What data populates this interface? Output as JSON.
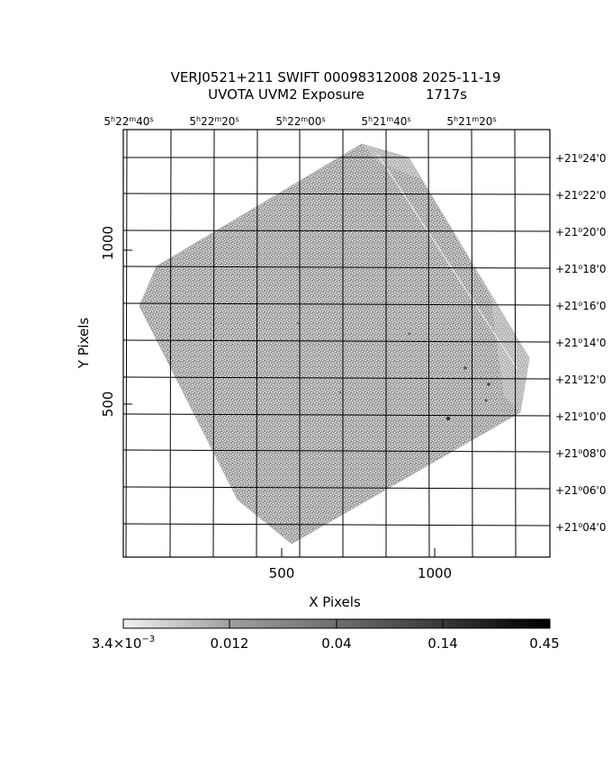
{
  "title": {
    "line1": "VERJ0521+211 SWIFT 00098312008 2025-11-19",
    "line2_prefix": "UVOTA UVM2 Exposure",
    "line2_exposure": "1717s"
  },
  "axes": {
    "xlabel": "X Pixels",
    "ylabel": "Y Pixels",
    "x_ticks": [
      "500",
      "1000"
    ],
    "y_ticks": [
      "500",
      "1000"
    ]
  },
  "ra_labels": [
    {
      "h": "5",
      "m": "22",
      "s": "40"
    },
    {
      "h": "5",
      "m": "22",
      "s": "20"
    },
    {
      "h": "5",
      "m": "22",
      "s": "00"
    },
    {
      "h": "5",
      "m": "21",
      "s": "40"
    },
    {
      "h": "5",
      "m": "21",
      "s": "20"
    }
  ],
  "dec_labels": [
    {
      "deg": "+21",
      "min": "24",
      "sec": "0"
    },
    {
      "deg": "+21",
      "min": "22",
      "sec": "0"
    },
    {
      "deg": "+21",
      "min": "20",
      "sec": "0"
    },
    {
      "deg": "+21",
      "min": "18",
      "sec": "0"
    },
    {
      "deg": "+21",
      "min": "16",
      "sec": "0"
    },
    {
      "deg": "+21",
      "min": "14",
      "sec": "0"
    },
    {
      "deg": "+21",
      "min": "12",
      "sec": "0"
    },
    {
      "deg": "+21",
      "min": "10",
      "sec": "0"
    },
    {
      "deg": "+21",
      "min": "08",
      "sec": "0"
    },
    {
      "deg": "+21",
      "min": "06",
      "sec": "0"
    },
    {
      "deg": "+21",
      "min": "04",
      "sec": "0"
    }
  ],
  "colorbar": {
    "labels": [
      {
        "mantissa": "3.4×10",
        "exponent": "−3"
      },
      {
        "mantissa": "0.012",
        "exponent": ""
      },
      {
        "mantissa": "0.04",
        "exponent": ""
      },
      {
        "mantissa": "0.14",
        "exponent": ""
      },
      {
        "mantissa": "0.45",
        "exponent": ""
      }
    ],
    "low_color": "#ffffff",
    "high_color": "#000000"
  },
  "image_colors": {
    "field_gray": "#9a9a9a",
    "background": "#ffffff",
    "grid_line": "#000000"
  }
}
